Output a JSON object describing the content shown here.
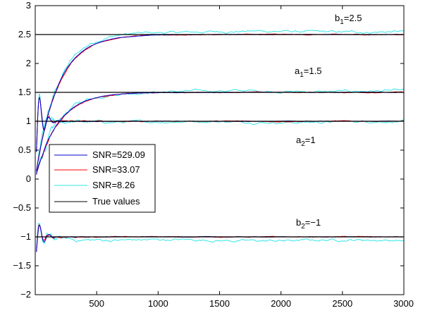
{
  "chart_data": {
    "type": "line",
    "xlim": [
      0,
      3000
    ],
    "ylim": [
      -2,
      3
    ],
    "x_ticks": [
      500,
      1000,
      1500,
      2000,
      2500,
      3000
    ],
    "x_tick_labels": [
      "500",
      "1000",
      "1500",
      "2000",
      "2500",
      "3000"
    ],
    "y_ticks": [
      -2,
      -1.5,
      -1,
      -0.5,
      0,
      0.5,
      1,
      1.5,
      2,
      2.5,
      3
    ],
    "y_tick_labels": [
      "−2",
      "−1.5",
      "−1",
      "−0.5",
      "0",
      "0.5",
      "1",
      "1.5",
      "2",
      "2.5",
      "3"
    ],
    "grid": false,
    "legend_position": "center-left",
    "series": [
      {
        "name": "SNR=529.09",
        "color": "#0000cc"
      },
      {
        "name": "SNR=33.07",
        "color": "#ff0000"
      },
      {
        "name": "SNR=8.26",
        "color": "#33e6e6"
      },
      {
        "name": "True values",
        "color": "#000000"
      }
    ],
    "parameters": [
      {
        "label_base": "b",
        "label_sub": "1",
        "label_value": "=2.5",
        "true_value": 2.5
      },
      {
        "label_base": "a",
        "label_sub": "1",
        "label_value": "=1.5",
        "true_value": 1.5
      },
      {
        "label_base": "a",
        "label_sub": "2",
        "label_value": "=1",
        "true_value": 1
      },
      {
        "label_base": "b",
        "label_sub": "2",
        "label_value": "=−1",
        "true_value": -1
      }
    ]
  }
}
